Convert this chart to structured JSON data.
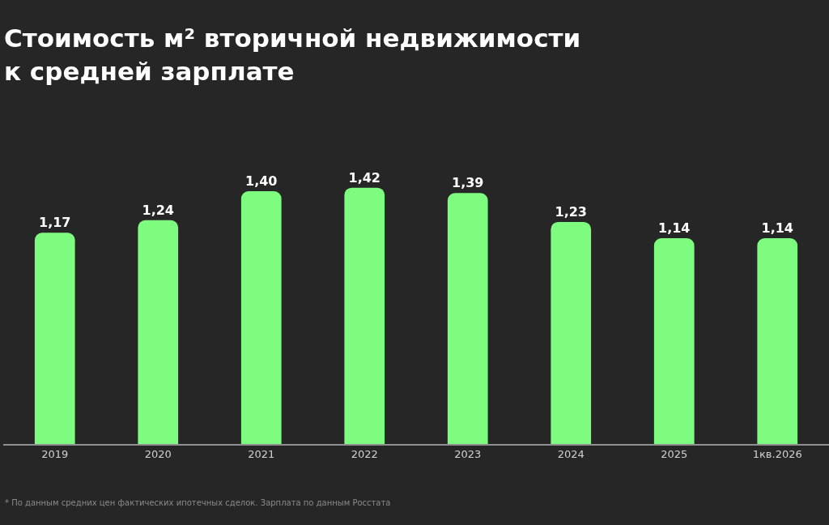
{
  "chart_data": {
    "type": "bar",
    "title": "Стоимость м² вторичной недвижимости\nк средней зарплате",
    "categories": [
      "2019",
      "2020",
      "2021",
      "2022",
      "2023",
      "2024",
      "2025",
      "1кв.2026"
    ],
    "values": [
      1.17,
      1.24,
      1.4,
      1.42,
      1.39,
      1.23,
      1.14,
      1.14
    ],
    "value_labels": [
      "1,17",
      "1,24",
      "1,40",
      "1,42",
      "1,39",
      "1,23",
      "1,14",
      "1,14"
    ],
    "color": "#7dfc7f",
    "tick_labels": "x",
    "annotations": [
      "* По данным средних цен фактических ипотечных сделок. Зарплата по данным Росстата"
    ]
  }
}
